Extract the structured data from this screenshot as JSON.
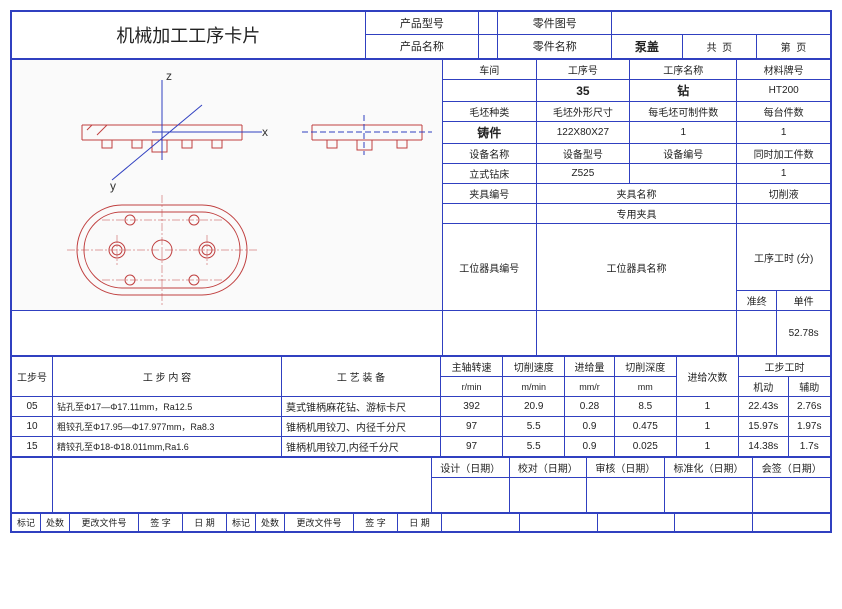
{
  "header": {
    "title": "机械加工工序卡片",
    "product_model_label": "产品型号",
    "product_name_label": "产品名称",
    "part_drawing_label": "零件图号",
    "part_name_label": "零件名称",
    "part_name": "泵盖",
    "total_label": "共",
    "page_label": "页",
    "sheet_label": "第",
    "page2_label": "页"
  },
  "info": {
    "workshop_label": "车间",
    "process_no_label": "工序号",
    "process_no": "35",
    "process_name_label": "工序名称",
    "process_name": "钻",
    "material_grade_label": "材料牌号",
    "material_grade": "HT200",
    "blank_type_label": "毛坯种类",
    "blank_type": "铸件",
    "blank_size_label": "毛坯外形尺寸",
    "blank_size": "122X80X27",
    "pieces_per_blank_label": "每毛坯可制件数",
    "pieces_per_blank": "1",
    "pieces_per_unit_label": "每台件数",
    "pieces_per_unit": "1",
    "equip_name_label": "设备名称",
    "equip_name": "立式钻床",
    "equip_model_label": "设备型号",
    "equip_model": "Z525",
    "equip_no_label": "设备编号",
    "simul_pieces_label": "同时加工件数",
    "simul_pieces": "1",
    "fixture_no_label": "夹具编号",
    "fixture_name_label": "夹具名称",
    "fixture_name": "专用夹具",
    "coolant_label": "切削液",
    "tool_no_label": "工位器具编号",
    "tool_name_label": "工位器具名称",
    "process_time_label": "工序工时 (分)",
    "prep_label": "准终",
    "unit_label": "单件",
    "unit_time": "52.78s"
  },
  "steps_header": {
    "step_no": "工步号",
    "step_content": "工 步 内 容",
    "process_equip": "工 艺 装 备",
    "spindle": "主轴转速",
    "spindle_unit": "r/min",
    "cut_speed": "切削速度",
    "cut_speed_unit": "m/min",
    "feed": "进给量",
    "feed_unit": "mm/r",
    "cut_depth": "切削深度",
    "cut_depth_unit": "mm",
    "feed_count": "进给次数",
    "step_time": "工步工时",
    "machine": "机动",
    "aux": "辅助"
  },
  "steps": [
    {
      "no": "05",
      "content": "钻孔至Φ17—Φ17.11mm，Ra12.5",
      "equip": "莫式锥柄麻花钻、游标卡尺",
      "spindle": "392",
      "speed": "20.9",
      "feed": "0.28",
      "depth": "8.5",
      "count": "1",
      "mach": "22.43s",
      "aux": "2.76s"
    },
    {
      "no": "10",
      "content": "粗铰孔至Φ17.95—Φ17.977mm，Ra8.3",
      "equip": "锥柄机用铰刀、内径千分尺",
      "spindle": "97",
      "speed": "5.5",
      "feed": "0.9",
      "depth": "0.475",
      "count": "1",
      "mach": "15.97s",
      "aux": "1.97s"
    },
    {
      "no": "15",
      "content": "精铰孔至Φ18-Φ18.011mm,Ra1.6",
      "equip": "锥柄机用铰刀,内径千分尺",
      "spindle": "97",
      "speed": "5.5",
      "feed": "0.9",
      "depth": "0.025",
      "count": "1",
      "mach": "14.38s",
      "aux": "1.7s"
    }
  ],
  "footer": {
    "design": "设计（日期）",
    "check": "校对（日期）",
    "review": "审核（日期）",
    "standard": "标准化（日期）",
    "sign": "会签（日期）",
    "mark": "标记",
    "count": "处数",
    "change_file": "更改文件号",
    "sig": "签 字",
    "date": "日 期"
  },
  "drawing": {
    "colors": {
      "line": "#c04040",
      "axis": "#3040c0",
      "bg": "#fafafa",
      "text": "#333"
    },
    "axis_labels": {
      "x": "x",
      "y": "y",
      "z": "z"
    },
    "line_width": 1
  }
}
